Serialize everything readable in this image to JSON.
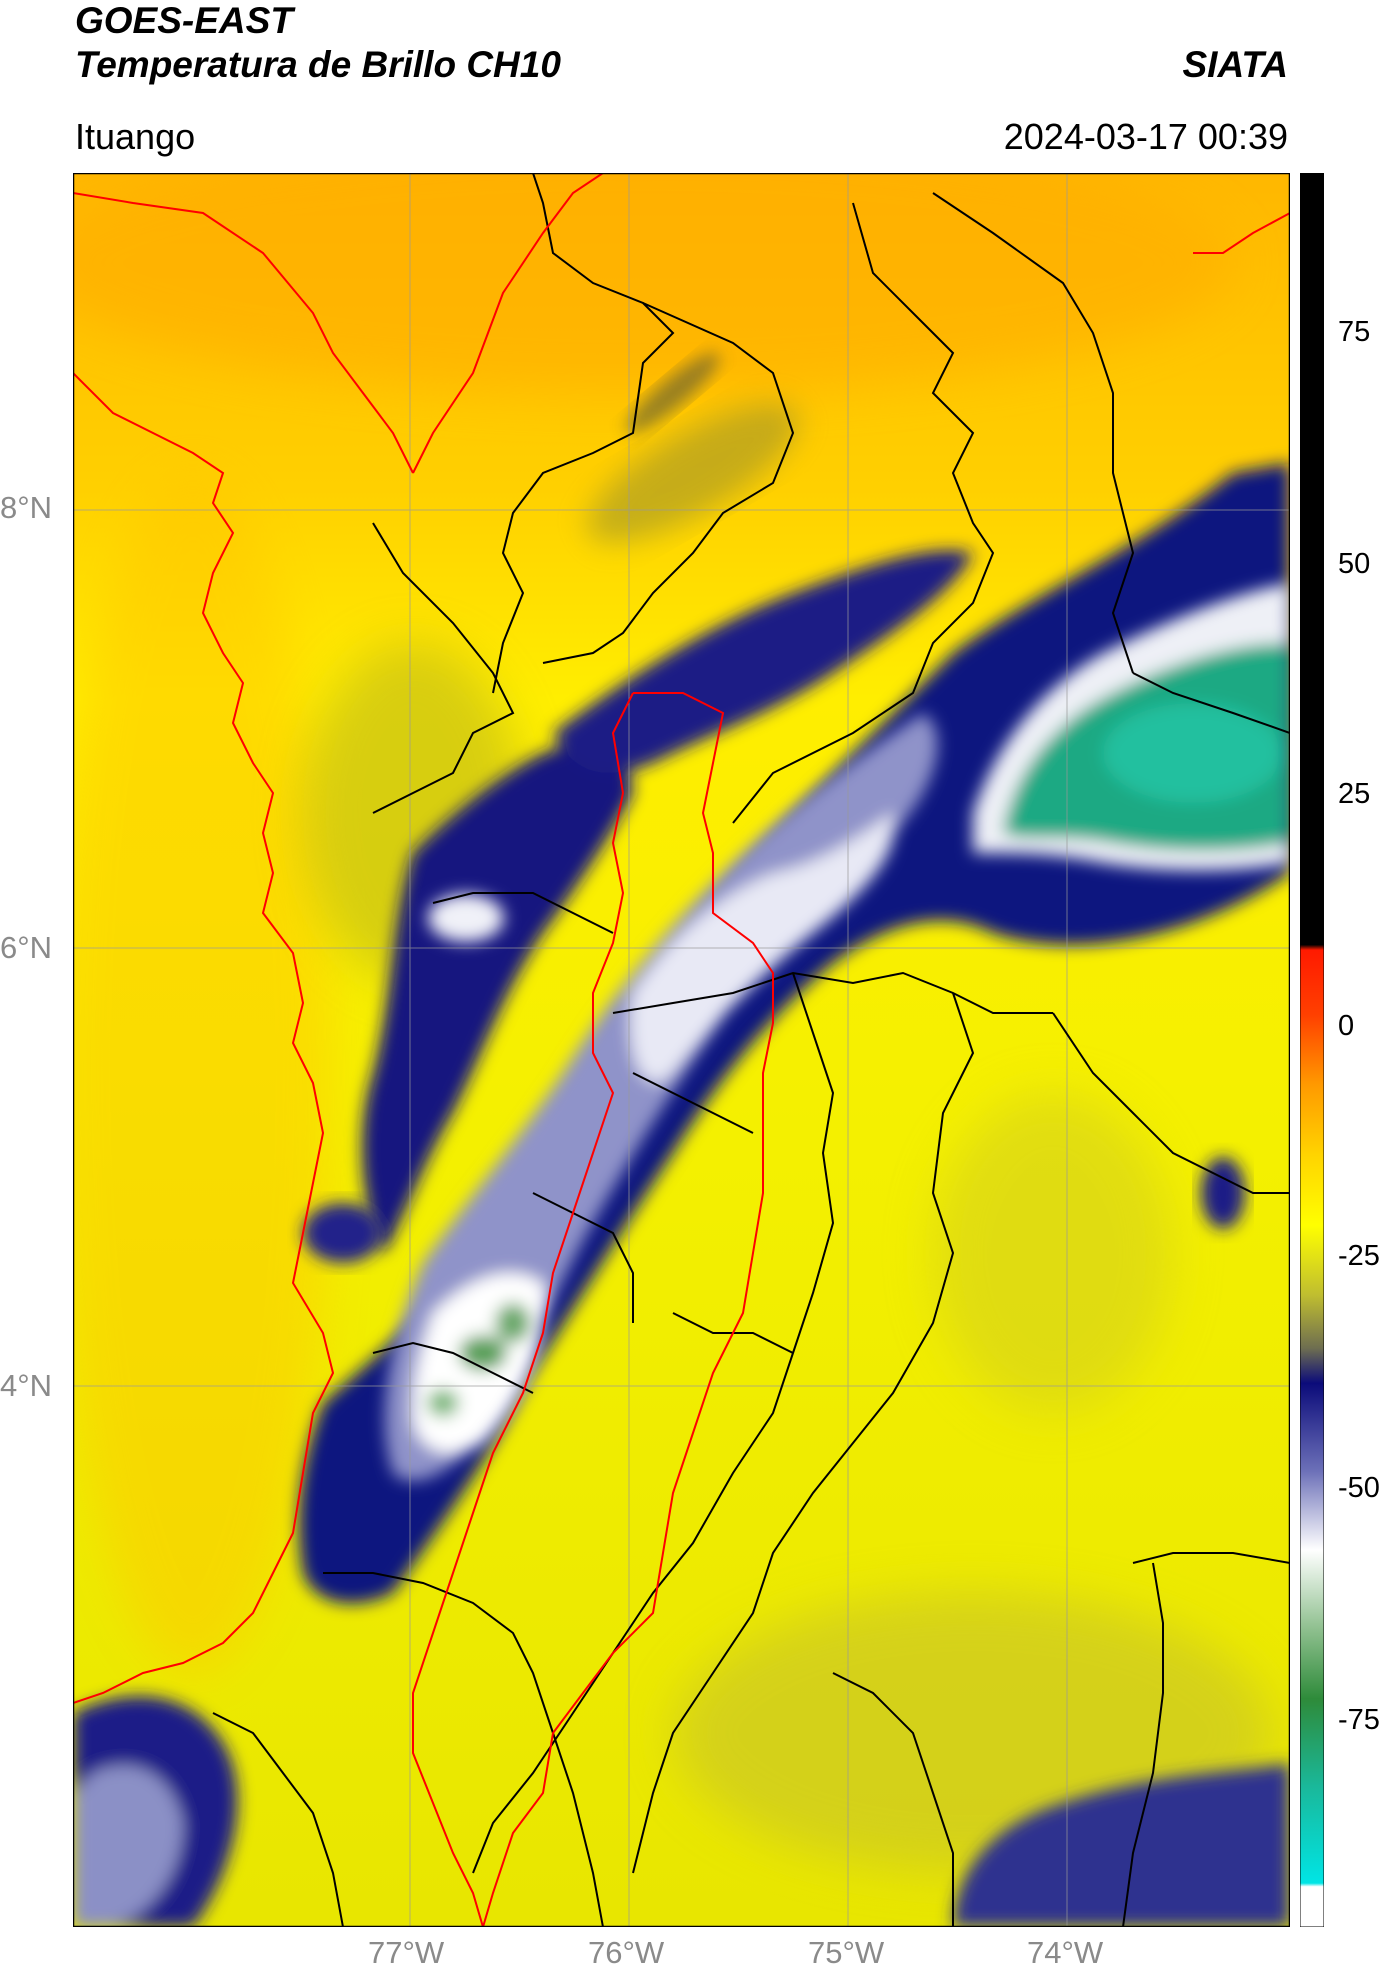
{
  "header": {
    "satellite": "GOES-EAST",
    "product": "Temperatura de Brillo CH10",
    "brand": "SIATA",
    "region": "Ituango",
    "datetime": "2024-03-17 00:39"
  },
  "map": {
    "lat_ticks": [
      "8°N",
      "6°N",
      "4°N"
    ],
    "lon_ticks": [
      "77°W",
      "76°W",
      "75°W",
      "74°W"
    ],
    "lat_range": [
      2.4,
      9.4
    ],
    "lon_range": [
      -78.55,
      -73.0
    ]
  },
  "colorbar": {
    "ticks": [
      "75",
      "50",
      "25",
      "0",
      "-25",
      "-50",
      "-75"
    ],
    "range": [
      -95,
      90
    ],
    "colors": {
      "black": "#000000",
      "red": "#ff1a00",
      "orange": "#ffb000",
      "yellow": "#ffff00",
      "olive": "#8a8a35",
      "navy": "#0b0b7a",
      "periwinkle": "#7a7fbf",
      "white": "#ffffff",
      "green": "#2e8b3a",
      "teal": "#1ab89a",
      "cyan": "#00e5e5"
    }
  },
  "colors": {
    "border_country": "#ff0000",
    "border_dept": "#000000"
  }
}
